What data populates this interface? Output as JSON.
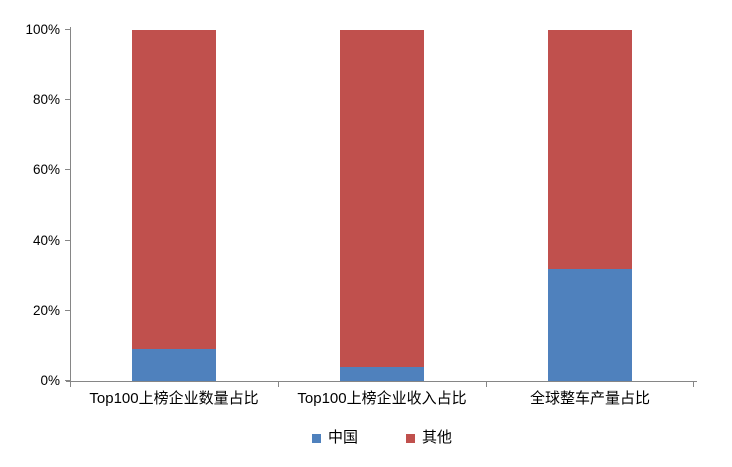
{
  "chart_data": {
    "type": "bar",
    "stacked": true,
    "percent_stacked": true,
    "title": "",
    "xlabel": "",
    "ylabel": "",
    "categories": [
      "Top100上榜企业数量占比",
      "Top100上榜企业收入占比",
      "全球整车产量占比"
    ],
    "series": [
      {
        "name": "中国",
        "color": "#4F81BD",
        "values": [
          9,
          4,
          32
        ]
      },
      {
        "name": "其他",
        "color": "#C0504D",
        "values": [
          91,
          96,
          68
        ]
      }
    ],
    "ylim": [
      0,
      100
    ],
    "ytick_labels": [
      "0%",
      "20%",
      "40%",
      "60%",
      "80%",
      "100%"
    ],
    "grid": false,
    "legend_position": "bottom",
    "axis_color": "#868686",
    "background_color": "#FFFFFF"
  }
}
